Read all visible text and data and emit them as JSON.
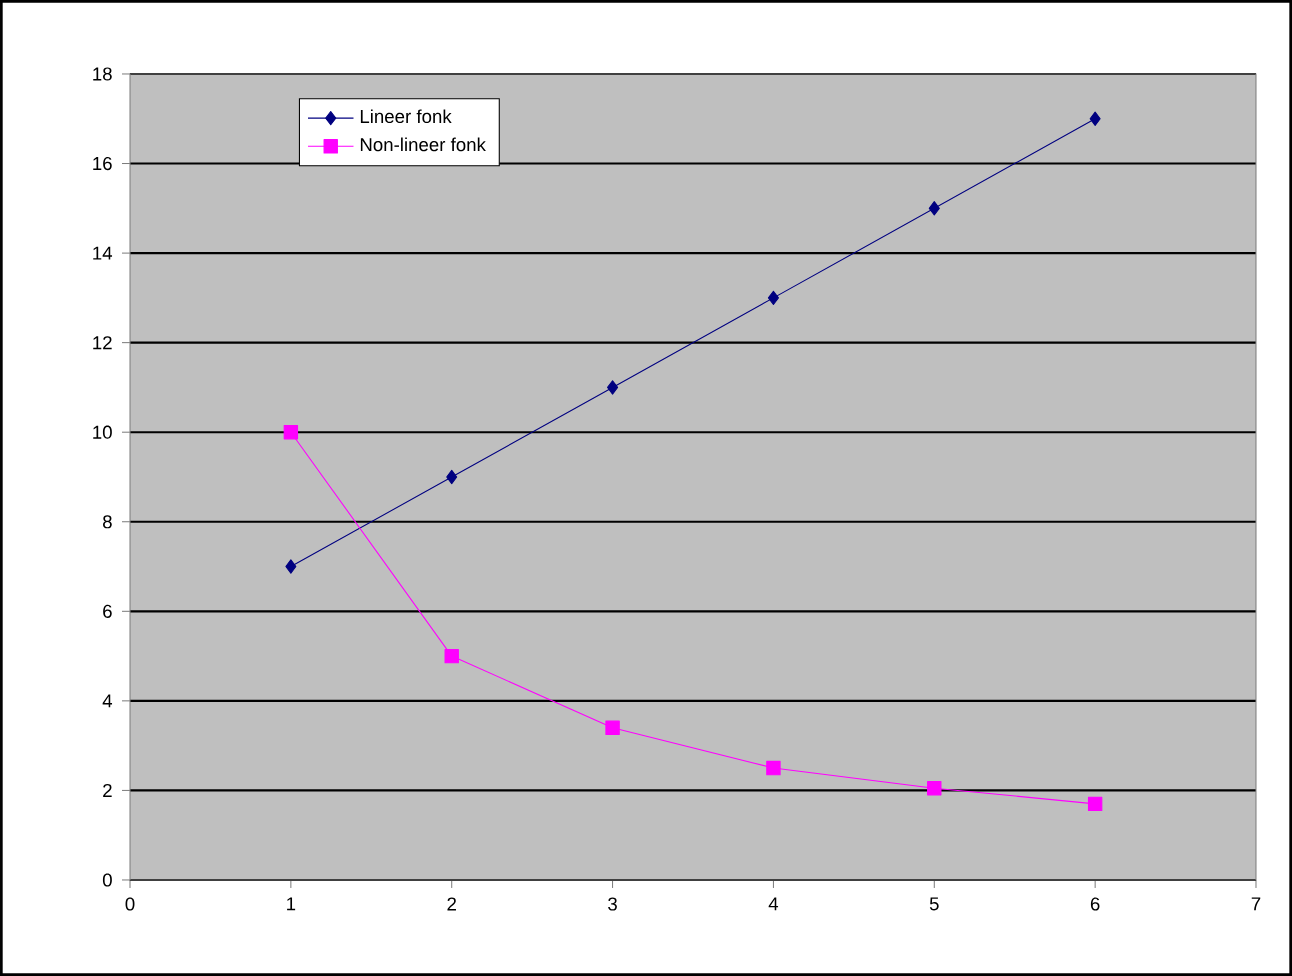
{
  "chart_data": {
    "type": "line",
    "x": [
      1,
      2,
      3,
      4,
      5,
      6
    ],
    "series": [
      {
        "name": "Lineer fonk",
        "color": "#000080",
        "marker": "diamond",
        "values": [
          7,
          9,
          11,
          13,
          15,
          17
        ]
      },
      {
        "name": "Non-lineer fonk",
        "color": "#ff00ff",
        "marker": "square",
        "values": [
          10,
          5,
          3.4,
          2.5,
          2.05,
          1.7
        ]
      }
    ],
    "xlim": [
      0,
      7
    ],
    "xticks": [
      0,
      1,
      2,
      3,
      4,
      5,
      6,
      7
    ],
    "ylim": [
      0,
      18
    ],
    "yticks": [
      0,
      2,
      4,
      6,
      8,
      10,
      12,
      14,
      16,
      18
    ],
    "grid": "y",
    "legend": "top left"
  }
}
